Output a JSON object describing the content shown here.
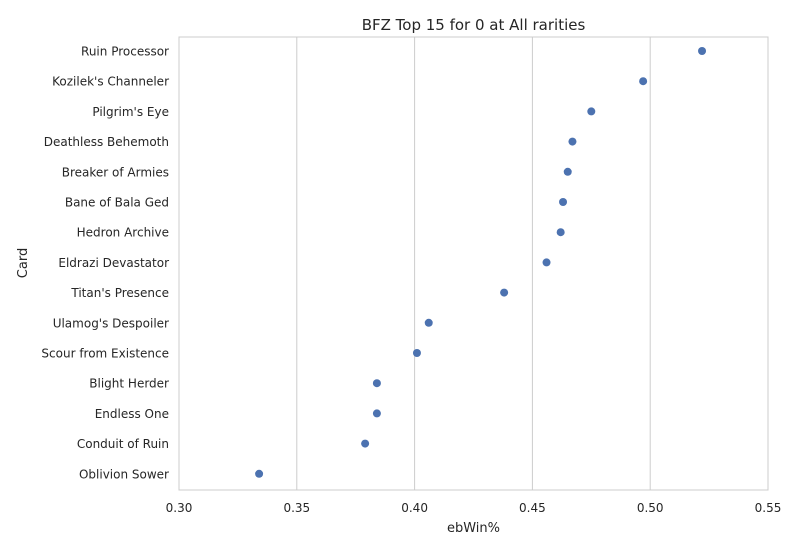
{
  "chart_data": {
    "type": "scatter",
    "title": "BFZ Top 15 for 0 at All rarities",
    "xlabel": "ebWin%",
    "ylabel": "Card",
    "xlim": [
      0.3,
      0.55
    ],
    "xticks": [
      0.3,
      0.35,
      0.4,
      0.45,
      0.5,
      0.55
    ],
    "xtick_labels": [
      "0.30",
      "0.35",
      "0.40",
      "0.45",
      "0.50",
      "0.55"
    ],
    "grid": "vertical",
    "marker_color": "#4c72b0",
    "categories": [
      "Ruin Processor",
      "Kozilek's Channeler",
      "Pilgrim's Eye",
      "Deathless Behemoth",
      "Breaker of Armies",
      "Bane of Bala Ged",
      "Hedron Archive",
      "Eldrazi Devastator",
      "Titan's Presence",
      "Ulamog's Despoiler",
      "Scour from Existence",
      "Blight Herder",
      "Endless One",
      "Conduit of Ruin",
      "Oblivion Sower"
    ],
    "values": [
      0.522,
      0.497,
      0.475,
      0.467,
      0.465,
      0.463,
      0.462,
      0.456,
      0.438,
      0.406,
      0.401,
      0.384,
      0.384,
      0.379,
      0.334
    ]
  }
}
